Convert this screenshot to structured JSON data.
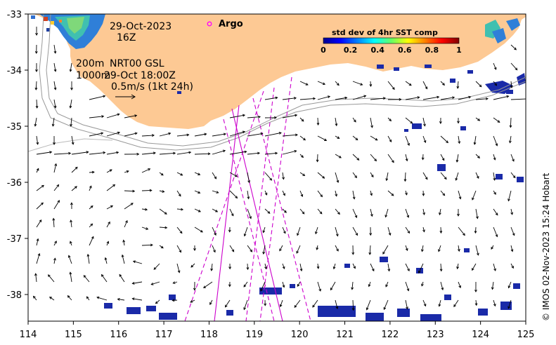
{
  "map": {
    "date_line": "29-Oct-2023",
    "hour_line": "16Z",
    "isobath_line": "200m",
    "model_line": "NRT00 GSL",
    "depth_line": "1000m",
    "analysis_time": "29-Oct 18:00Z",
    "scale_text": "0.5m/s (1kt 24h)",
    "argo_label": "Argo",
    "credit": "© IMOS 02-Nov-2023 15:24 Hobart",
    "colorbar": {
      "title": "std dev of 4hr SST comp",
      "ticks": [
        "0",
        "0.2",
        "0.4",
        "0.6",
        "0.8",
        "1"
      ]
    },
    "x_ticks": [
      "114",
      "115",
      "116",
      "117",
      "118",
      "119",
      "120",
      "121",
      "122",
      "123",
      "124",
      "125"
    ],
    "y_ticks": [
      "-33",
      "-34",
      "-35",
      "-36",
      "-37",
      "-38"
    ],
    "colors": {
      "land": "#fdc994",
      "ocean": "#ffffff",
      "track": "#cc00cc",
      "argo_marker": "#ff00ff",
      "sst_patch": "#1a2aa8",
      "contour": "#999999"
    }
  }
}
